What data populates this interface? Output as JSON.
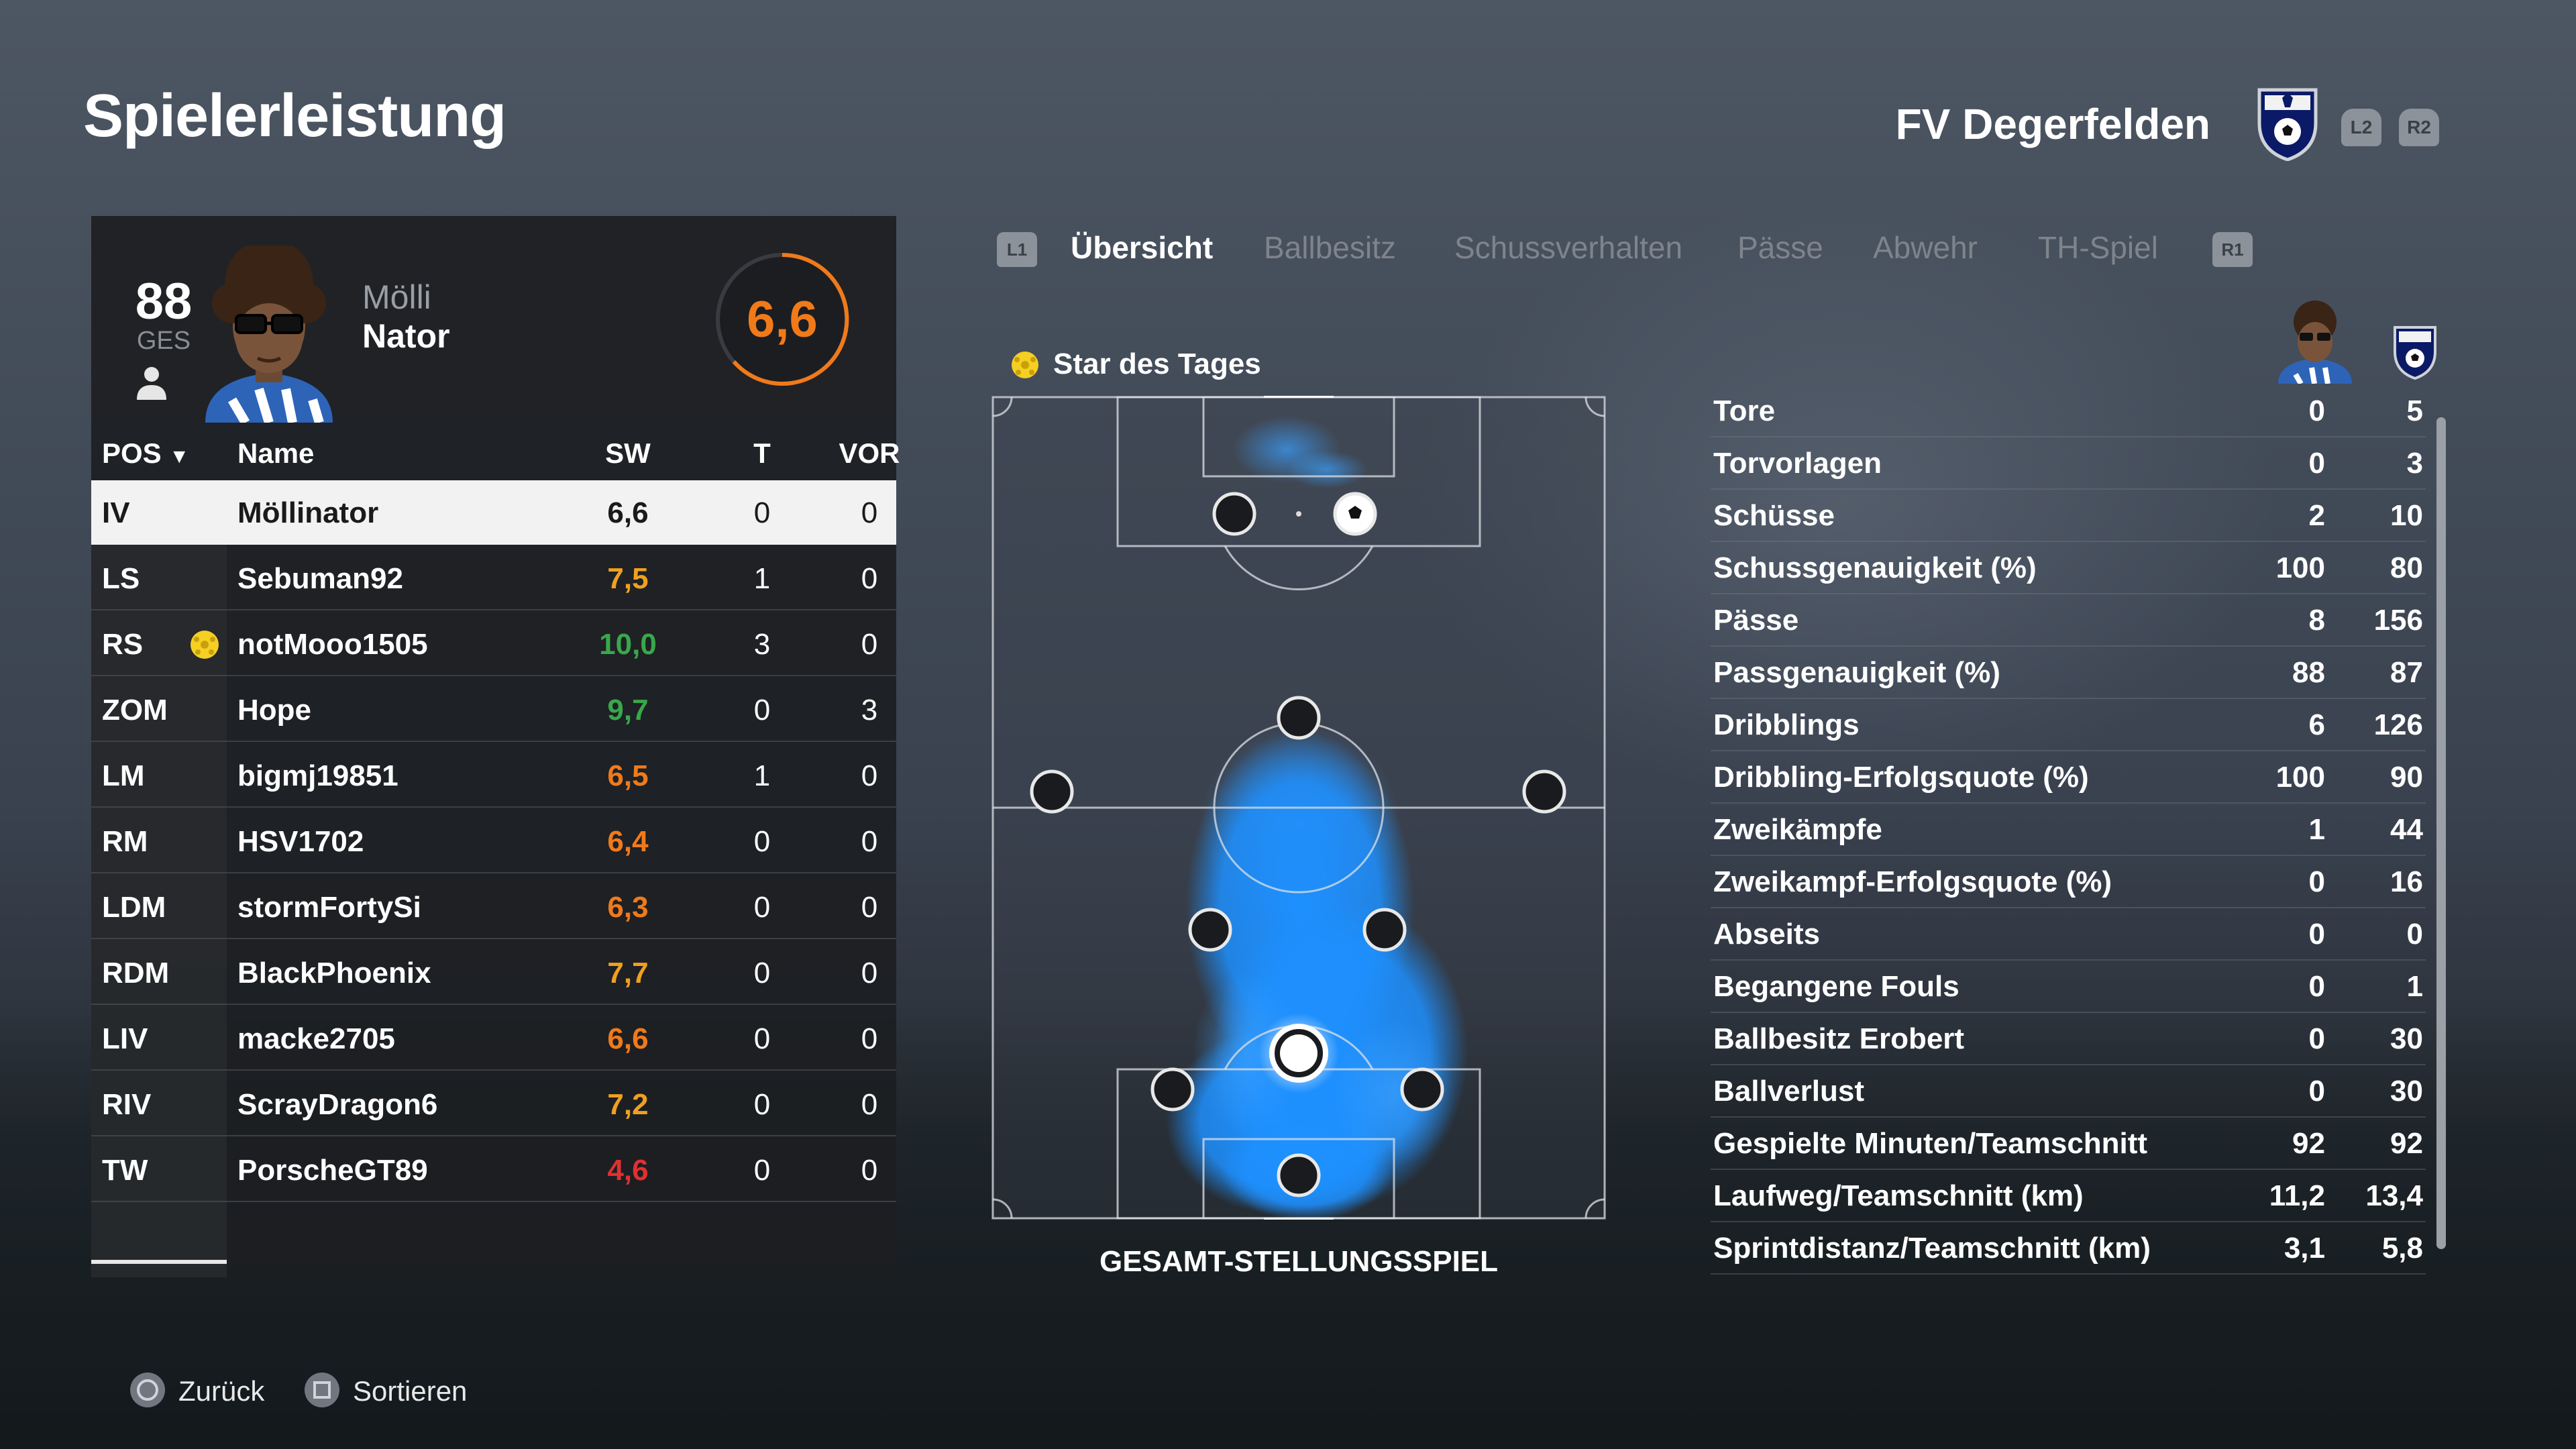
{
  "page_title": "Spielerleistung",
  "team": {
    "name": "FV Degerfelden",
    "shoulder_left": "L2",
    "shoulder_right": "R2"
  },
  "player": {
    "overall": "88",
    "overall_label": "GES",
    "first_name": "Mölli",
    "last_name": "Nator",
    "rating": "6,6"
  },
  "table": {
    "headers": {
      "pos": "POS",
      "name": "Name",
      "sw": "SW",
      "t": "T",
      "vor": "VOR"
    },
    "rows": [
      {
        "pos": "IV",
        "name": "Möllinator",
        "sw": "6,6",
        "t": "0",
        "vor": "0",
        "color": "#1a1a1a",
        "selected": true
      },
      {
        "pos": "LS",
        "name": "Sebuman92",
        "sw": "7,5",
        "t": "1",
        "vor": "0",
        "color": "#f0a020"
      },
      {
        "pos": "RS",
        "name": "notMooo1505",
        "sw": "10,0",
        "t": "3",
        "vor": "0",
        "color": "#38a84a",
        "star": true
      },
      {
        "pos": "ZOM",
        "name": "Hope",
        "sw": "9,7",
        "t": "0",
        "vor": "3",
        "color": "#38a84a"
      },
      {
        "pos": "LM",
        "name": "bigmj19851",
        "sw": "6,5",
        "t": "1",
        "vor": "0",
        "color": "#f07a1a"
      },
      {
        "pos": "RM",
        "name": "HSV1702",
        "sw": "6,4",
        "t": "0",
        "vor": "0",
        "color": "#f07a1a"
      },
      {
        "pos": "LDM",
        "name": "stormFortySi",
        "sw": "6,3",
        "t": "0",
        "vor": "0",
        "color": "#f07a1a"
      },
      {
        "pos": "RDM",
        "name": "BlackPhoenix",
        "sw": "7,7",
        "t": "0",
        "vor": "0",
        "color": "#f0a020"
      },
      {
        "pos": "LIV",
        "name": "macke2705",
        "sw": "6,6",
        "t": "0",
        "vor": "0",
        "color": "#f07a1a"
      },
      {
        "pos": "RIV",
        "name": "ScrayDragon6",
        "sw": "7,2",
        "t": "0",
        "vor": "0",
        "color": "#f0a020"
      },
      {
        "pos": "TW",
        "name": "PorscheGT89",
        "sw": "4,6",
        "t": "0",
        "vor": "0",
        "color": "#e03030"
      }
    ]
  },
  "tabs": {
    "badge_left": "L1",
    "badge_right": "R1",
    "items": [
      "Übersicht",
      "Ballbesitz",
      "Schussverhalten",
      "Pässe",
      "Abwehr",
      "TH-Spiel"
    ]
  },
  "star_of_day": "Star des Tages",
  "pitch_caption": "GESAMT-STELLUNGSSPIEL",
  "stats": [
    {
      "label": "Tore",
      "player": "0",
      "team": "5"
    },
    {
      "label": "Torvorlagen",
      "player": "0",
      "team": "3"
    },
    {
      "label": "Schüsse",
      "player": "2",
      "team": "10"
    },
    {
      "label": "Schussgenauigkeit (%)",
      "player": "100",
      "team": "80"
    },
    {
      "label": "Pässe",
      "player": "8",
      "team": "156"
    },
    {
      "label": "Passgenauigkeit (%)",
      "player": "88",
      "team": "87"
    },
    {
      "label": "Dribblings",
      "player": "6",
      "team": "126"
    },
    {
      "label": "Dribbling-Erfolgsquote (%)",
      "player": "100",
      "team": "90"
    },
    {
      "label": "Zweikämpfe",
      "player": "1",
      "team": "44"
    },
    {
      "label": "Zweikampf-Erfolgsquote (%)",
      "player": "0",
      "team": "16"
    },
    {
      "label": "Abseits",
      "player": "0",
      "team": "0"
    },
    {
      "label": "Begangene Fouls",
      "player": "0",
      "team": "1"
    },
    {
      "label": "Ballbesitz Erobert",
      "player": "0",
      "team": "30"
    },
    {
      "label": "Ballverlust",
      "player": "0",
      "team": "30"
    },
    {
      "label": "Gespielte Minuten/Teamschnitt",
      "player": "92",
      "team": "92"
    },
    {
      "label": "Laufweg/Teamschnitt (km)",
      "player": "11,2",
      "team": "13,4"
    },
    {
      "label": "Sprintdistanz/Teamschnitt (km)",
      "player": "3,1",
      "team": "5,8"
    }
  ],
  "footer": {
    "back": "Zurück",
    "sort": "Sortieren"
  },
  "colors": {
    "accent_orange": "#f07a1a",
    "heatmap_blue": "#1e90ff",
    "good_green": "#38a84a",
    "bad_red": "#e03030"
  }
}
